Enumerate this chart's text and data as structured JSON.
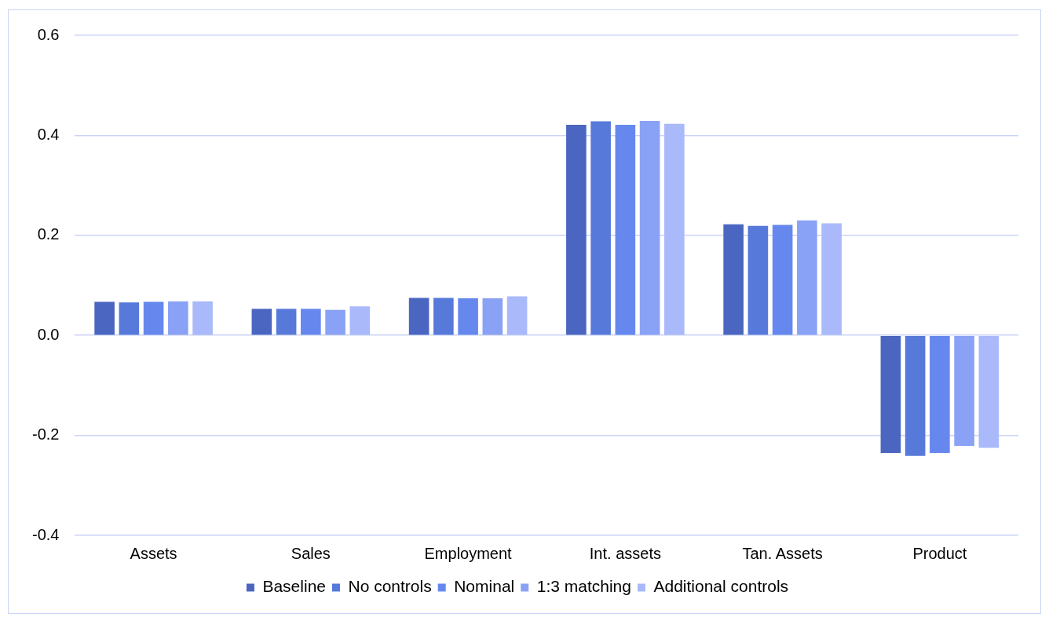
{
  "chart_data": {
    "type": "bar",
    "categories": [
      "Assets",
      "Sales",
      "Employment",
      "Int. assets",
      "Tan. Assets",
      "Product"
    ],
    "series": [
      {
        "name": "Baseline",
        "color": "#4a66c0",
        "values": [
          0.067,
          0.053,
          0.075,
          0.421,
          0.222,
          -0.235
        ]
      },
      {
        "name": "No controls",
        "color": "#5779d9",
        "values": [
          0.066,
          0.053,
          0.075,
          0.428,
          0.219,
          -0.241
        ]
      },
      {
        "name": "Nominal",
        "color": "#6688ee",
        "values": [
          0.067,
          0.053,
          0.074,
          0.421,
          0.221,
          -0.235
        ]
      },
      {
        "name": "1:3 matching",
        "color": "#8aa2f5",
        "values": [
          0.068,
          0.051,
          0.074,
          0.429,
          0.23,
          -0.221
        ]
      },
      {
        "name": "Additional controls",
        "color": "#a9b9fa",
        "values": [
          0.068,
          0.058,
          0.078,
          0.423,
          0.224,
          -0.225
        ]
      }
    ],
    "ylim": [
      -0.4,
      0.6
    ],
    "yticks": [
      {
        "value": -0.4,
        "label": "-0.4"
      },
      {
        "value": -0.2,
        "label": "-0.2"
      },
      {
        "value": 0,
        "label": "0.0"
      },
      {
        "value": 0.2,
        "label": "0.2"
      },
      {
        "value": 0.4,
        "label": "0.4"
      },
      {
        "value": 0.6,
        "label": "0.6"
      }
    ],
    "grid": "y",
    "legend": "bottom"
  }
}
